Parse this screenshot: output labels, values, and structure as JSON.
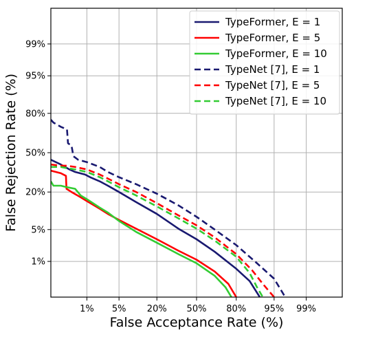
{
  "chart_data": {
    "type": "line",
    "xlabel": "False Acceptance Rate (%)",
    "ylabel": "False Rejection Rate (%)",
    "x_scale": "normal-deviate (DET)",
    "y_scale": "normal-deviate (DET)",
    "xlim": [
      0.1,
      99.9
    ],
    "ylim": [
      0.1,
      99.9
    ],
    "x_ticks": [
      1,
      5,
      20,
      50,
      80,
      95,
      99
    ],
    "x_tick_labels": [
      "1%",
      "5%",
      "20%",
      "50%",
      "80%",
      "95%",
      "99%"
    ],
    "y_ticks": [
      1,
      5,
      20,
      50,
      80,
      95,
      99
    ],
    "y_tick_labels": [
      "1%",
      "5%",
      "20%",
      "50%",
      "80%",
      "95%",
      "99%"
    ],
    "grid": true,
    "legend_position": "top-right",
    "series": [
      {
        "name": "TypeFormer, E = 1",
        "color": "#191970",
        "dash": "solid",
        "points": [
          [
            0.1,
            44
          ],
          [
            0.2,
            40
          ],
          [
            0.35,
            36
          ],
          [
            0.5,
            34
          ],
          [
            0.9,
            32
          ],
          [
            1.2,
            30
          ],
          [
            2,
            27
          ],
          [
            3,
            24
          ],
          [
            5,
            20
          ],
          [
            10,
            14.5
          ],
          [
            20,
            9.5
          ],
          [
            35,
            5.2
          ],
          [
            50,
            3.2
          ],
          [
            65,
            1.7
          ],
          [
            80,
            0.65
          ],
          [
            87,
            0.3
          ],
          [
            91,
            0.1
          ]
        ]
      },
      {
        "name": "TypeFormer, E = 5",
        "color": "#ff0000",
        "dash": "solid",
        "points": [
          [
            0.1,
            35
          ],
          [
            0.2,
            33
          ],
          [
            0.28,
            31
          ],
          [
            0.29,
            22
          ],
          [
            0.4,
            20
          ],
          [
            0.7,
            17
          ],
          [
            1,
            15
          ],
          [
            2,
            11.5
          ],
          [
            3,
            9.5
          ],
          [
            5,
            7.5
          ],
          [
            10,
            5.2
          ],
          [
            20,
            3.2
          ],
          [
            35,
            1.8
          ],
          [
            50,
            1.1
          ],
          [
            65,
            0.55
          ],
          [
            75,
            0.25
          ],
          [
            80,
            0.1
          ]
        ]
      },
      {
        "name": "TypeFormer, E = 10",
        "color": "#33cc33",
        "dash": "solid",
        "points": [
          [
            0.1,
            27
          ],
          [
            0.12,
            24
          ],
          [
            0.2,
            24
          ],
          [
            0.3,
            23
          ],
          [
            0.5,
            22
          ],
          [
            0.7,
            18
          ],
          [
            1,
            16
          ],
          [
            2,
            12
          ],
          [
            3,
            10
          ],
          [
            5,
            7.2
          ],
          [
            10,
            4.5
          ],
          [
            20,
            2.7
          ],
          [
            35,
            1.5
          ],
          [
            50,
            0.9
          ],
          [
            65,
            0.42
          ],
          [
            73,
            0.2
          ],
          [
            77,
            0.1
          ]
        ]
      },
      {
        "name": "TypeNet [7], E = 1",
        "color": "#191970",
        "dash": "dashed",
        "points": [
          [
            0.1,
            76
          ],
          [
            0.12,
            74
          ],
          [
            0.2,
            71
          ],
          [
            0.3,
            69
          ],
          [
            0.32,
            58
          ],
          [
            0.4,
            56
          ],
          [
            0.45,
            47
          ],
          [
            0.6,
            44
          ],
          [
            1,
            42
          ],
          [
            2,
            38
          ],
          [
            3,
            34
          ],
          [
            5,
            30
          ],
          [
            10,
            25
          ],
          [
            20,
            19
          ],
          [
            35,
            13
          ],
          [
            50,
            8.5
          ],
          [
            65,
            5
          ],
          [
            80,
            2.4
          ],
          [
            90,
            0.9
          ],
          [
            95,
            0.35
          ],
          [
            97,
            0.1
          ]
        ]
      },
      {
        "name": "TypeNet [7], E = 5",
        "color": "#ff0000",
        "dash": "dashed",
        "points": [
          [
            0.1,
            40
          ],
          [
            0.2,
            39
          ],
          [
            0.3,
            39
          ],
          [
            0.5,
            38
          ],
          [
            1,
            36
          ],
          [
            2,
            32
          ],
          [
            3,
            29
          ],
          [
            5,
            25
          ],
          [
            10,
            20
          ],
          [
            20,
            14
          ],
          [
            35,
            9
          ],
          [
            50,
            6
          ],
          [
            65,
            3.5
          ],
          [
            80,
            1.5
          ],
          [
            88,
            0.6
          ],
          [
            92,
            0.25
          ],
          [
            95,
            0.1
          ]
        ]
      },
      {
        "name": "TypeNet [7], E = 10",
        "color": "#33cc33",
        "dash": "dashed",
        "points": [
          [
            0.1,
            38
          ],
          [
            0.2,
            38
          ],
          [
            0.3,
            37
          ],
          [
            0.5,
            36
          ],
          [
            1,
            34
          ],
          [
            2,
            30
          ],
          [
            3,
            27
          ],
          [
            5,
            23
          ],
          [
            10,
            18
          ],
          [
            20,
            12.5
          ],
          [
            35,
            8
          ],
          [
            50,
            5.2
          ],
          [
            65,
            3
          ],
          [
            80,
            1.3
          ],
          [
            87,
            0.5
          ],
          [
            90,
            0.2
          ],
          [
            92,
            0.1
          ]
        ]
      }
    ]
  }
}
